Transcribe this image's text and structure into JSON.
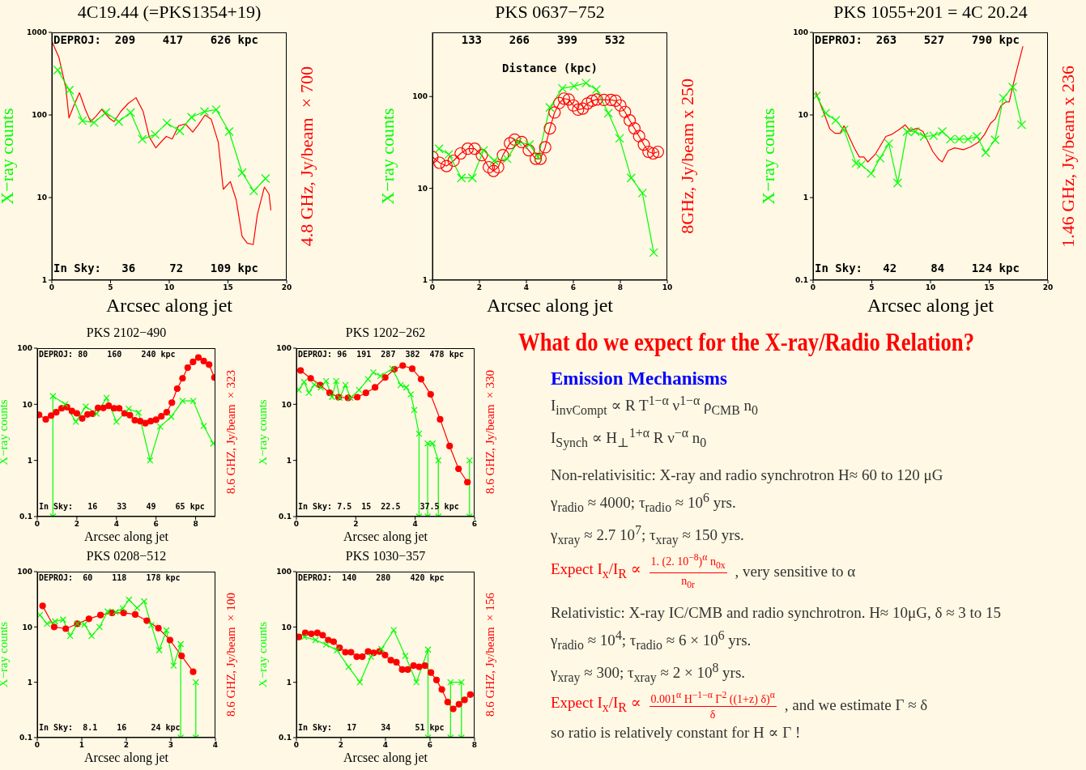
{
  "chart_data": [
    {
      "type": "line",
      "title": "4C19.44 (=PKS1354+19)",
      "xlabel": "Arcsec along jet",
      "ylabel": "X−ray counts",
      "y2label": "4.8 GHz, Jy/beam ×700",
      "log": "y",
      "xlim": [
        0,
        20
      ],
      "xticks": [
        0,
        5,
        10,
        15,
        20
      ],
      "ylim": [
        1,
        1000
      ],
      "yticks": [
        1,
        10,
        100,
        1000
      ],
      "annotations": [
        "DEPROJ:  209    417    626 kpc",
        "In Sky:   36     72    109 kpc"
      ],
      "series": [
        {
          "color": "#00ff00",
          "marker": "cross",
          "x": [
            0.5,
            1.5,
            2.6,
            3.6,
            4.6,
            5.7,
            6.7,
            7.7,
            8.8,
            9.8,
            10.9,
            11.9,
            13,
            14,
            15.1,
            16.2,
            17.2,
            18.2
          ],
          "values": [
            350,
            200,
            85,
            81,
            107,
            83,
            107,
            51,
            58,
            80,
            64,
            94,
            110,
            116,
            63,
            20,
            12,
            17
          ]
        },
        {
          "color": "#ff0000",
          "marker": "none",
          "x": [
            0,
            0.6,
            1.2,
            1.46,
            1.84,
            2.35,
            2.85,
            3.3,
            3.74,
            4.24,
            4.87,
            5.3,
            5.87,
            6.5,
            7.17,
            7.78,
            8.3,
            8.86,
            9.35,
            9.75,
            10.25,
            10.8,
            11.37,
            12,
            12.5,
            13.05,
            13.57,
            14.17,
            14.6,
            15.2,
            15.7,
            16.2,
            16.64,
            17.15,
            17.5,
            18.1,
            18.5,
            18.65
          ],
          "values": [
            780,
            500,
            210,
            92,
            126,
            186,
            117,
            83,
            96,
            117,
            92,
            83,
            110,
            138,
            162,
            110,
            54,
            40,
            48,
            55,
            51,
            74,
            78,
            62,
            77,
            100,
            89,
            47,
            12.6,
            15.6,
            9.4,
            3.4,
            2.8,
            2.7,
            6.2,
            13.4,
            11,
            7
          ]
        }
      ]
    },
    {
      "type": "line",
      "title": "PKS 0637−752",
      "xlabel": "Arcsec along jet",
      "ylabel": "X−ray counts",
      "y2label": "8GHz, Jy/beam x 250",
      "log": "y",
      "xlim": [
        0,
        10
      ],
      "xticks": [
        0,
        2,
        4,
        6,
        8,
        10
      ],
      "ylim": [
        1,
        500
      ],
      "yticks": [
        1,
        10,
        100
      ],
      "annotations": [
        "    133    266    399    532",
        "Distance (kpc)"
      ],
      "series": [
        {
          "color": "#00ff00",
          "marker": "cross",
          "x": [
            0.28,
            0.7,
            1.23,
            1.7,
            2.18,
            2.63,
            3.18,
            3.63,
            4.13,
            4.5,
            5,
            5.53,
            6.03,
            6.54,
            6.98,
            7.49,
            7.97,
            8.46,
            8.94,
            9.42
          ],
          "values": [
            27,
            23.5,
            13,
            13,
            26,
            20,
            21,
            32,
            30,
            22,
            76,
            123,
            130,
            140,
            119,
            66,
            35,
            13,
            8.9,
            2
          ]
        },
        {
          "color": "#ff0000",
          "marker": "circle",
          "x": [
            0,
            0.3,
            0.6,
            0.9,
            1.2,
            1.5,
            1.8,
            2.1,
            2.4,
            2.6,
            2.8,
            3,
            3.3,
            3.5,
            3.8,
            4.1,
            4.4,
            4.6,
            4.8,
            5,
            5.2,
            5.4,
            5.6,
            5.8,
            6,
            6.2,
            6.4,
            6.6,
            6.8,
            7,
            7.3,
            7.6,
            7.8,
            8,
            8.2,
            8.4,
            8.6,
            8.8,
            9,
            9.2,
            9.4,
            9.6
          ],
          "values": [
            22,
            19,
            17.5,
            20,
            24,
            27,
            27,
            23,
            17,
            15.5,
            17,
            23,
            31,
            34,
            32,
            26,
            21,
            21,
            28,
            45,
            67,
            85,
            95,
            93,
            80,
            72,
            74,
            84,
            90,
            93,
            92,
            92,
            90,
            80,
            68,
            55,
            45,
            37,
            30,
            25,
            24,
            25
          ]
        }
      ]
    },
    {
      "type": "line",
      "title": "PKS 1055+201 = 4C 20.24",
      "xlabel": "Arcsec along jet",
      "ylabel": "X−ray counts",
      "y2label": "1.46 GHz, Jy/beam x 236",
      "log": "y",
      "xlim": [
        0,
        20
      ],
      "xticks": [
        0,
        5,
        10,
        15,
        20
      ],
      "ylim": [
        0.1,
        100
      ],
      "yticks": [
        0.1,
        1,
        10,
        100
      ],
      "annotations": [
        "DEPROJ:  263    527    790 kpc",
        "In Sky:   42     84    124 kpc"
      ],
      "series": [
        {
          "color": "#00ff00",
          "marker": "cross",
          "x": [
            0.29,
            1.07,
            1.93,
            2.64,
            3.65,
            4.1,
            4.95,
            5.7,
            6.45,
            7.2,
            8,
            8.7,
            9.45,
            10.26,
            11,
            11.7,
            12.45,
            13.2,
            13.95,
            14.7,
            15.5,
            16.2,
            17,
            17.76
          ],
          "values": [
            17,
            10.5,
            8.6,
            6.6,
            2.6,
            2.5,
            1.95,
            3,
            4.5,
            1.5,
            6.3,
            6.3,
            5.5,
            5.6,
            6.3,
            5.1,
            5.1,
            5.1,
            5.5,
            3.5,
            5,
            16,
            21.8,
            7.6
          ]
        },
        {
          "color": "#ff0000",
          "marker": "none",
          "x": [
            0.22,
            0.85,
            1.42,
            1.86,
            2.3,
            2.64,
            2.98,
            3.54,
            3.94,
            4.32,
            4.66,
            5.33,
            6.2,
            6.67,
            7.35,
            7.84,
            8.24,
            8.9,
            9.36,
            9.8,
            10.2,
            10.7,
            11,
            11.5,
            12.05,
            12.8,
            13.4,
            14.1,
            14.6,
            15.1,
            15.5,
            16,
            16.4,
            16.7,
            17.2,
            17.87
          ],
          "values": [
            19,
            11.2,
            6.8,
            6,
            6,
            7.4,
            5.8,
            3.9,
            3.1,
            3.1,
            2.7,
            3.4,
            5.5,
            5.8,
            6.7,
            7.6,
            6.5,
            6.9,
            6.3,
            4.7,
            3.6,
            2.9,
            2.7,
            3.7,
            4,
            3.8,
            4.1,
            4.7,
            5.8,
            7.9,
            8.9,
            12.9,
            14.4,
            14.4,
            29,
            68
          ]
        }
      ]
    },
    {
      "type": "line",
      "title": "PKS 2102−490",
      "xlabel": "Arcsec along jet",
      "ylabel": "X−ray counts",
      "y2label": "8.6 GHZ, Jy/beam ×323",
      "log": "y",
      "xlim": [
        0,
        9
      ],
      "xticks": [
        0,
        2,
        4,
        6,
        8
      ],
      "ylim": [
        0.1,
        100
      ],
      "yticks": [
        0.1,
        1,
        10,
        100
      ],
      "annotations": [
        "DEPROJ: 80    160    240 kpc",
        "In Sky:   16    33    49    65 kpc"
      ],
      "series": [
        {
          "color": "#00ff00",
          "marker": "cross",
          "x": [
            0.79,
            0.79,
            1.41,
            1.95,
            2.45,
            3,
            3.5,
            4,
            4.62,
            5.12,
            5.7,
            6.21,
            6.77,
            7.34,
            7.88,
            8.41,
            8.89
          ],
          "values": [
            0.1,
            14,
            10,
            4.9,
            9.1,
            6.8,
            13,
            4.9,
            8.3,
            7.1,
            1,
            4,
            6,
            11.5,
            11.5,
            4.1,
            2
          ]
        },
        {
          "color": "#ff0000",
          "marker": "circle",
          "x": [
            0.09,
            0.43,
            0.7,
            0.96,
            1.23,
            1.5,
            1.75,
            2,
            2.27,
            2.54,
            2.8,
            3.07,
            3.34,
            3.61,
            3.88,
            4.14,
            4.41,
            4.68,
            4.93,
            5.2,
            5.46,
            5.73,
            6,
            6.27,
            6.54,
            6.8,
            7.07,
            7.34,
            7.6,
            7.87,
            8.14,
            8.41,
            8.68,
            8.95
          ],
          "values": [
            6.5,
            5.4,
            6.3,
            7.2,
            8.5,
            8.9,
            7.6,
            6.9,
            5.6,
            6.6,
            6.8,
            8.6,
            8.6,
            9.4,
            8.5,
            8.5,
            6.9,
            6.4,
            5.2,
            5,
            4.6,
            5,
            5.3,
            6.1,
            7.2,
            10.7,
            19,
            29,
            45,
            57,
            68,
            59,
            51,
            30
          ]
        }
      ]
    },
    {
      "type": "line",
      "title": "PKS 1202−262",
      "xlabel": "Arcsec along jet",
      "ylabel": "X−ray counts",
      "y2label": "8.6 GHZ, Jy/beam ×330",
      "log": "y",
      "xlim": [
        0,
        6
      ],
      "xticks": [
        0,
        2,
        4,
        6
      ],
      "ylim": [
        0.1,
        100
      ],
      "yticks": [
        0.1,
        1,
        10,
        100
      ],
      "annotations": [
        "DEPROJ: 96  191  287  382  478 kpc",
        "In Sky: 7.5  15  22.5    37.5 kpc"
      ],
      "series": [
        {
          "color": "#00ff00",
          "marker": "cross",
          "x": [
            0.08,
            0.26,
            0.42,
            0.6,
            0.82,
            1,
            1.2,
            1.34,
            1.46,
            1.65,
            1.82,
            2.11,
            2.41,
            2.59,
            2.83,
            3.23,
            3.51,
            3.7,
            3.85,
            3.97,
            4.13,
            4.13,
            4.42,
            4.42,
            4.59,
            4.78,
            4.78,
            5.83,
            5.83
          ],
          "values": [
            18,
            25,
            16,
            22.4,
            20,
            26,
            13.5,
            26,
            13,
            22,
            13,
            18,
            28,
            37,
            32,
            43,
            22,
            20,
            15,
            7.9,
            3,
            0.1,
            0.1,
            2,
            2,
            1,
            0.1,
            0.1,
            1
          ]
        },
        {
          "color": "#ff0000",
          "marker": "circle",
          "x": [
            0.14,
            0.48,
            0.8,
            1.12,
            1.42,
            1.74,
            2.05,
            2.34,
            2.65,
            2.99,
            3.3,
            3.58,
            3.9,
            4.2,
            4.52,
            4.84,
            5.16,
            5.46,
            5.76
          ],
          "values": [
            40,
            29,
            22,
            16,
            13.4,
            13,
            13.4,
            16,
            20,
            30,
            42,
            49,
            43,
            28,
            15,
            5.4,
            1.8,
            0.71,
            0.41
          ]
        }
      ]
    },
    {
      "type": "line",
      "title": "PKS 0208−512",
      "xlabel": "Arcsec along jet",
      "ylabel": "X−ray counts",
      "y2label": "8.6 GHZ, Jy/beam ×100",
      "log": "y",
      "xlim": [
        0,
        4
      ],
      "xticks": [
        0,
        1,
        2,
        3,
        4
      ],
      "ylim": [
        0.1,
        100
      ],
      "yticks": [
        0.1,
        1,
        10,
        100
      ],
      "annotations": [
        "DEPROJ:  60    118    178 kpc",
        "In Sky:  8.1    16     24 kpc"
      ],
      "series": [
        {
          "color": "#00ff00",
          "marker": "cross",
          "x": [
            0.06,
            0.22,
            0.4,
            0.58,
            0.74,
            0.9,
            1.06,
            1.22,
            1.4,
            1.58,
            1.76,
            1.92,
            2.06,
            2.24,
            2.4,
            2.56,
            2.74,
            2.9,
            3.06,
            3.22,
            3.22,
            3.56,
            3.56
          ],
          "values": [
            16.4,
            11.4,
            12.6,
            13.6,
            6.9,
            11.4,
            11.1,
            6.9,
            10,
            19,
            18.6,
            21.7,
            31,
            22,
            29,
            10.8,
            3.8,
            8.7,
            2,
            4.9,
            0.1,
            0.1,
            1
          ]
        },
        {
          "color": "#ff0000",
          "marker": "circle",
          "x": [
            0.12,
            0.38,
            0.64,
            0.9,
            1.16,
            1.42,
            1.68,
            1.94,
            2.2,
            2.46,
            2.72,
            2.98,
            3.24,
            3.5
          ],
          "values": [
            24,
            10,
            9.3,
            11.4,
            14,
            16.4,
            18,
            18,
            16.8,
            13,
            9.5,
            5.8,
            3,
            1.55
          ]
        }
      ]
    },
    {
      "type": "line",
      "title": "PKS 1030−357",
      "xlabel": "Arcsec along jet",
      "ylabel": "X−ray counts",
      "y2label": "8.6 GHZ, Jy/beam ×156",
      "log": "y",
      "xlim": [
        0,
        8
      ],
      "xticks": [
        0,
        2,
        4,
        6,
        8
      ],
      "ylim": [
        0.1,
        100
      ],
      "yticks": [
        0.1,
        1,
        10,
        100
      ],
      "annotations": [
        "DEPROJ:  140    280    420 kpc",
        "In Sky:   17     34     51 kpc"
      ],
      "series": [
        {
          "color": "#00ff00",
          "marker": "cross",
          "x": [
            0.35,
            0.86,
            1.34,
            1.82,
            2.34,
            2.85,
            3.35,
            3.82,
            4.37,
            4.89,
            5.39,
            5.91,
            5.91,
            6.92,
            6.92,
            7.41,
            7.41
          ],
          "values": [
            6.6,
            5.8,
            4.8,
            3.8,
            1.9,
            1,
            2.9,
            4,
            8.8,
            3,
            1,
            3.9,
            0.1,
            0.1,
            1,
            1,
            0.1
          ]
        },
        {
          "color": "#ff0000",
          "marker": "circle",
          "x": [
            0.11,
            0.4,
            0.67,
            0.94,
            1.18,
            1.43,
            1.67,
            1.94,
            2.2,
            2.45,
            2.71,
            2.96,
            3.22,
            3.47,
            3.73,
            3.98,
            4.24,
            4.49,
            4.75,
            5,
            5.26,
            5.51,
            5.77,
            6.04,
            6.29,
            6.53,
            6.79,
            7.04,
            7.3,
            7.55,
            7.81
          ],
          "values": [
            6.6,
            7.8,
            7.5,
            7.8,
            7.1,
            5.8,
            5.4,
            4.2,
            3.5,
            3.5,
            2.9,
            2.9,
            3.6,
            3.4,
            3.6,
            3.1,
            2.5,
            2.3,
            1.7,
            1.7,
            2,
            1.9,
            2,
            1.5,
            1.1,
            0.74,
            0.44,
            0.33,
            0.4,
            0.48,
            0.6
          ]
        }
      ]
    },
    {
      "type": "other",
      "title": "What do we expect for the X-ray/Radio Relation?",
      "subtitle": "Emission Mechanisms",
      "annotations": [
        "I$_{invCompt}$ ∝ R T$^{1−α}$ ν$^{1−α}$ ρ$_{CMB}$ n$_{0}$",
        "I$_{Synch}$ ∝ H$_{⊥}$$^{1+α}$ R ν$^{−α}$ n$_{0}$",
        "Non-relativisitic: X-ray and radio synchrotron H≈ 60 to 120 μG",
        "γ$_{radio}$ ≈ 4000; τ$_{radio}$ ≈ 10$^{6}$ yrs.",
        "γ$_{xray}$ ≈ 2.7 10$^{7}$; τ$_{xray}$ ≈ 150 yrs.",
        "Expect I$_{x}$/I$_{R}$ ∝",
        "1. (2. 10$^{−8}$)$^{α}$ n$_{0x}$",
        "n$_{0r}$",
        ", very sensitive to α",
        "Relativistic: X-ray IC/CMB and radio synchrotron. H≈ 10μG, δ ≈ 3 to 15",
        "γ$_{radio}$ ≈ 10$^{4}$; τ$_{radio}$ ≈ 6 × 10$^{6}$ yrs.",
        "γ$_{xray}$ ≈ 300; τ$_{xray}$ ≈ 2 × 10$^{8}$ yrs.",
        "Expect I$_{x}$/I$_{R}$ ∝",
        "0.001$^{α}$ H$^{−1−α}$ Γ$^{2}$ ((1+z) δ)$^{α}$",
        "δ",
        ", and we estimate Γ ≈ δ",
        "so ratio is relatively constant for H ∝ Γ !"
      ]
    }
  ]
}
